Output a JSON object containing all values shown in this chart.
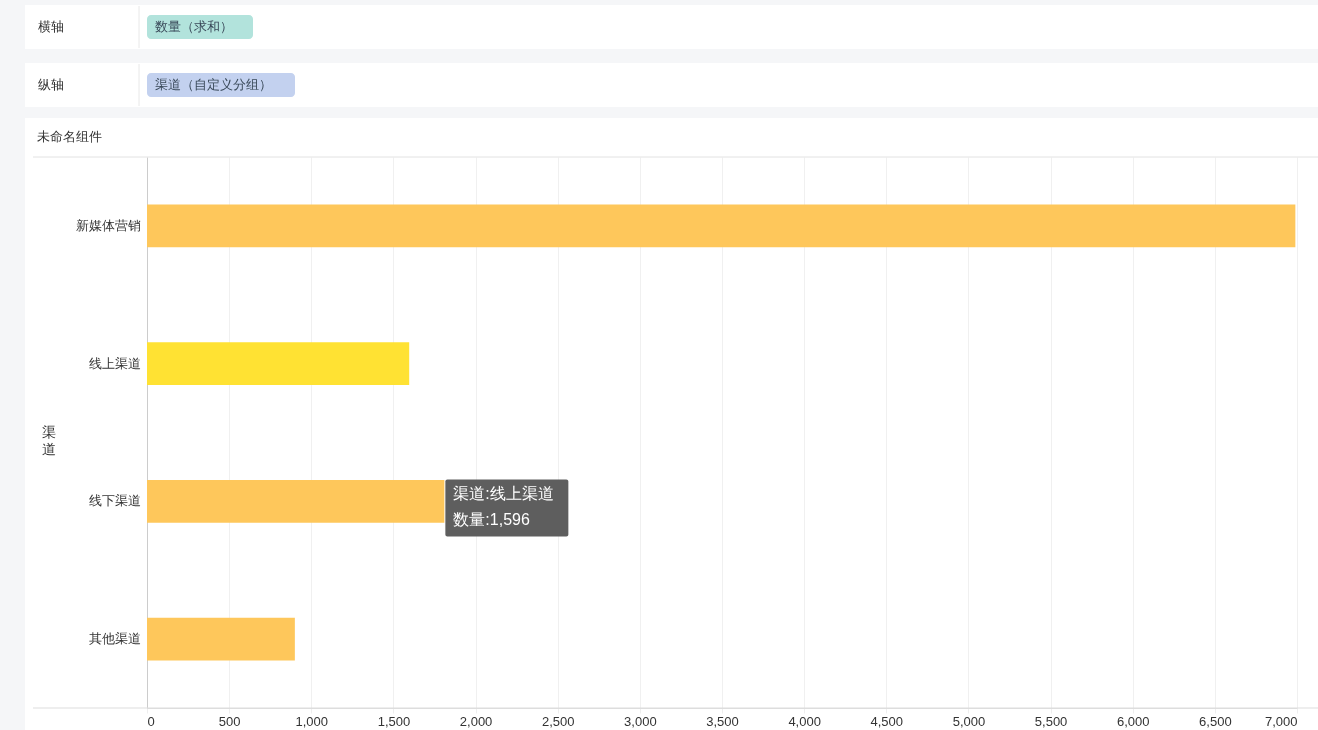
{
  "chart_data": {
    "type": "bar",
    "orientation": "horizontal",
    "title": "未命名组件",
    "ylabel": "渠道",
    "categories": [
      "新媒体营销",
      "线上渠道",
      "线下渠道",
      "其他渠道"
    ],
    "values": [
      6990,
      1596,
      1810,
      900
    ],
    "colors": [
      "#fec75b",
      "#ffe233",
      "#fec75b",
      "#fec75b"
    ],
    "xlim": [
      0,
      7000
    ],
    "xticks": [
      0,
      500,
      {
        "value": 1000,
        "label": "1,000"
      },
      {
        "value": 1500,
        "label": "1,500"
      },
      {
        "value": 2000,
        "label": "2,000"
      },
      {
        "value": 2500,
        "label": "2,500"
      },
      {
        "value": 3000,
        "label": "3,000"
      },
      {
        "value": 3500,
        "label": "3,500"
      },
      {
        "value": 4000,
        "label": "4,000"
      },
      {
        "value": 4500,
        "label": "4,500"
      },
      {
        "value": 5000,
        "label": "5,000"
      },
      {
        "value": 5500,
        "label": "5,500"
      },
      {
        "value": 6000,
        "label": "6,000"
      },
      {
        "value": 6500,
        "label": "6,500"
      },
      {
        "value": 7000,
        "label": "7,000"
      }
    ],
    "grid": "x",
    "annotations": [
      "横轴",
      "数量（求和）",
      "纵轴",
      "渠道（自定义分组）",
      "渠道:线上渠道",
      "数量:1,596"
    ]
  }
}
